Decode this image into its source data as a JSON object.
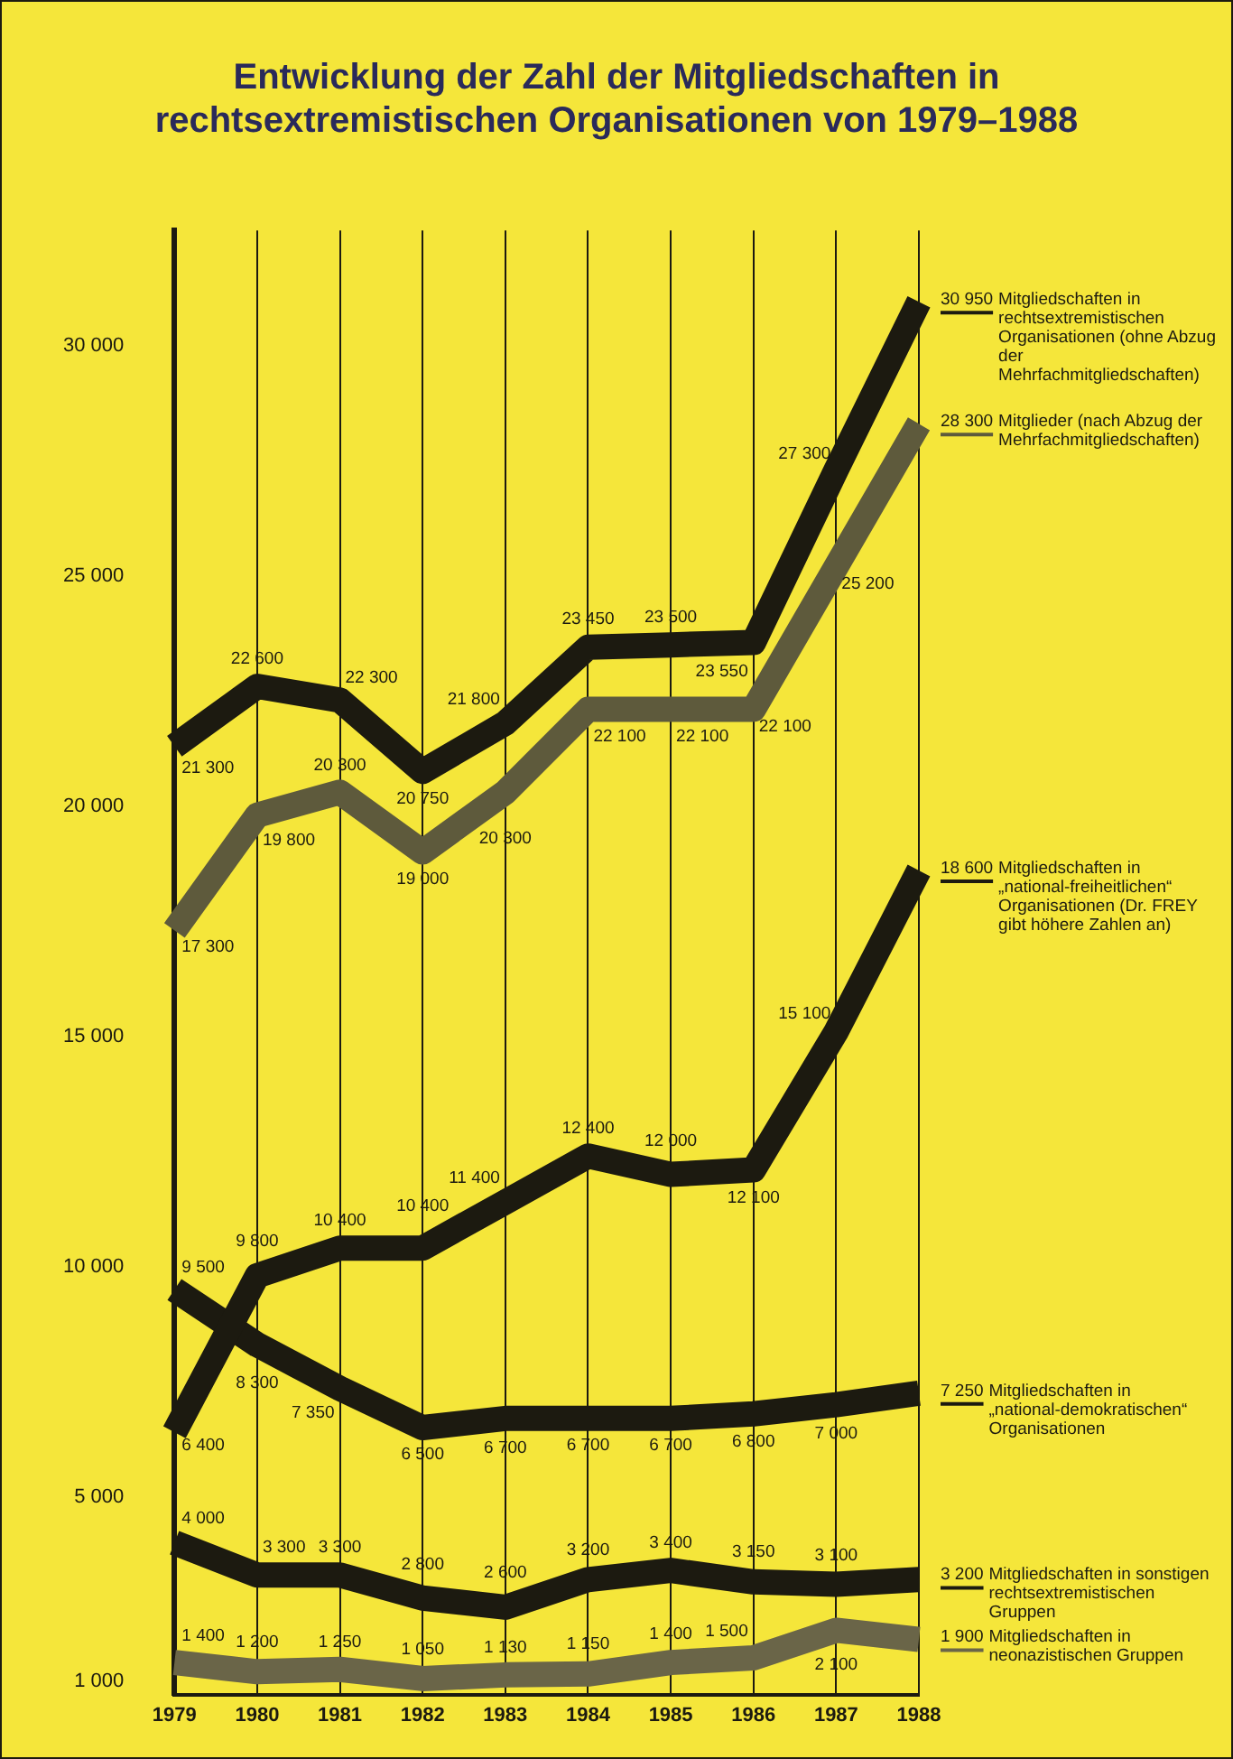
{
  "chart_data": {
    "type": "line",
    "title": "Entwicklung der Zahl der Mitgliedschaften in rechtsextremistischen Organisationen von 1979–1988",
    "categories": [
      "1979",
      "1980",
      "1981",
      "1982",
      "1983",
      "1984",
      "1985",
      "1986",
      "1987",
      "1988"
    ],
    "ylim": [
      700,
      32500
    ],
    "yticks": [
      {
        "value": 1000,
        "label": "1 000"
      },
      {
        "value": 5000,
        "label": "5 000"
      },
      {
        "value": 10000,
        "label": "10 000"
      },
      {
        "value": 15000,
        "label": "15 000"
      },
      {
        "value": 20000,
        "label": "20 000"
      },
      {
        "value": 25000,
        "label": "25 000"
      },
      {
        "value": 30000,
        "label": "30 000"
      }
    ],
    "grid": "x",
    "legend": "right",
    "marker": "none",
    "line_style": "solid",
    "series": [
      {
        "name": "Mitgliedschaften in rechtsextremistischen Organisationen (ohne Abzug der Mehrfachmitgliedschaften)",
        "color": "#1c1a10",
        "values": [
          21300,
          22600,
          22300,
          20750,
          21800,
          23450,
          23500,
          23550,
          27300,
          30950
        ],
        "value_labels": [
          "21 300",
          "22 600",
          "22 300",
          "20 750",
          "21 800",
          "23 450",
          "23 500",
          "23 550",
          "27 300",
          "30 950"
        ]
      },
      {
        "name": "Mitglieder (nach Abzug der Mehrfachmitgliedschaften)",
        "color": "#5e5a3c",
        "values": [
          17300,
          19800,
          20300,
          19000,
          20300,
          22100,
          22100,
          22100,
          25200,
          28300
        ],
        "value_labels": [
          "17 300",
          "19 800",
          "20 300",
          "19 000",
          "20 300",
          "22 100",
          "22 100",
          "22 100",
          "25 200",
          "28 300"
        ]
      },
      {
        "name": "Mitgliedschaften in „national-freiheitlichen“ Organisationen (Dr. FREY gibt höhere Zahlen an)",
        "color": "#1c1a10",
        "values": [
          6400,
          9800,
          10400,
          10400,
          11400,
          12400,
          12000,
          12100,
          15100,
          18600
        ],
        "value_labels": [
          "6 400",
          "9 800",
          "10 400",
          "10 400",
          "11 400",
          "12 400",
          "12 000",
          "12 100",
          "15 100",
          "18 600"
        ]
      },
      {
        "name": "Mitgliedschaften in „national-demokratischen“ Organisationen",
        "color": "#1c1a10",
        "values": [
          9500,
          8300,
          7350,
          6500,
          6700,
          6700,
          6700,
          6800,
          7000,
          7250
        ],
        "value_labels": [
          "9 500",
          "8 300",
          "7 350",
          "6 500",
          "6 700",
          "6 700",
          "6 700",
          "6 800",
          "7 000",
          "7 250"
        ]
      },
      {
        "name": "Mitgliedschaften in sonstigen rechtsextremistischen Gruppen",
        "color": "#1c1a10",
        "values": [
          4000,
          3300,
          3300,
          2800,
          2600,
          3200,
          3400,
          3150,
          3100,
          3200
        ],
        "value_labels": [
          "4 000",
          "3 300",
          "3 300",
          "2 800",
          "2 600",
          "3 200",
          "3 400",
          "3 150",
          "3 100",
          "3 200"
        ]
      },
      {
        "name": "Mitgliedschaften in neonazistischen Gruppen",
        "color": "#6a6548",
        "values": [
          1400,
          1200,
          1250,
          1050,
          1130,
          1150,
          1400,
          1500,
          2100,
          1900
        ],
        "value_labels": [
          "1 400",
          "1 200",
          "1 250",
          "1 050",
          "1 130",
          "1 150",
          "1 400",
          "1 500",
          "2 100",
          "1 900"
        ]
      }
    ]
  }
}
